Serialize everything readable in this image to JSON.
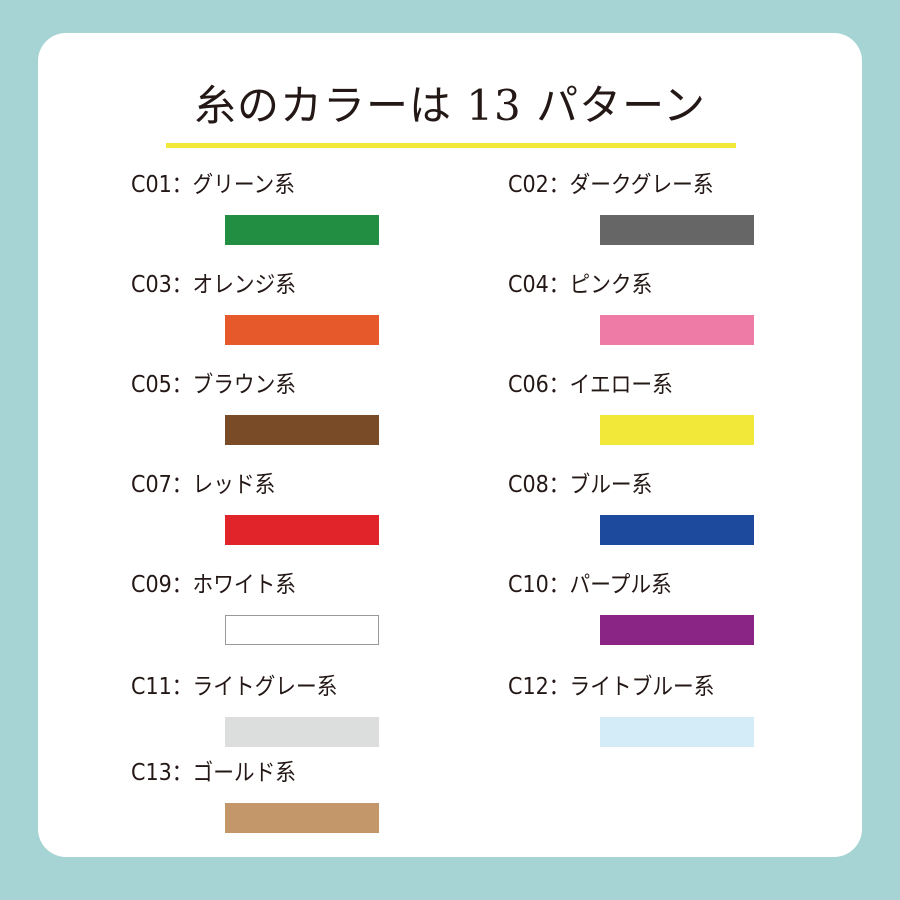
{
  "title": "糸のカラーは 13 パターン",
  "accent_color": "#f2e83a",
  "background_color": "#a6d3d3",
  "colors": [
    {
      "code": "C01",
      "label": "C01：グリーン系",
      "hex": "#218e41"
    },
    {
      "code": "C02",
      "label": "C02：ダークグレー系",
      "hex": "#666666"
    },
    {
      "code": "C03",
      "label": "C03：オレンジ系",
      "hex": "#e5592a"
    },
    {
      "code": "C04",
      "label": "C04：ピンク系",
      "hex": "#ee7aa6"
    },
    {
      "code": "C05",
      "label": "C05：ブラウン系",
      "hex": "#7a4b27"
    },
    {
      "code": "C06",
      "label": "C06：イエロー系",
      "hex": "#f2e83a"
    },
    {
      "code": "C07",
      "label": "C07：レッド系",
      "hex": "#e0242a"
    },
    {
      "code": "C08",
      "label": "C08：ブルー系",
      "hex": "#1d4a9c"
    },
    {
      "code": "C09",
      "label": "C09：ホワイト系",
      "hex": "#ffffff"
    },
    {
      "code": "C10",
      "label": "C10：パープル系",
      "hex": "#8b2585"
    },
    {
      "code": "C11",
      "label": "C11：ライトグレー系",
      "hex": "#dcdddd"
    },
    {
      "code": "C12",
      "label": "C12：ライトブルー系",
      "hex": "#d3ecf8"
    },
    {
      "code": "C13",
      "label": "C13：ゴールド系",
      "hex": "#c3976a"
    }
  ]
}
